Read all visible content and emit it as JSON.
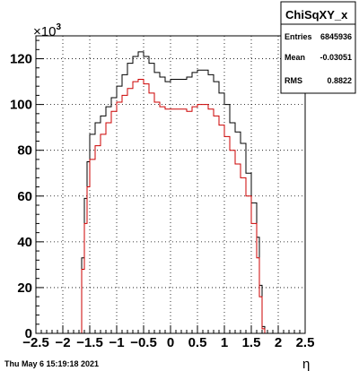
{
  "timestamp": "Thu May  6 15:19:18 2021",
  "stats": {
    "title": "ChiSqXY_x",
    "rows": [
      {
        "label": "Entries",
        "value": "6845936"
      },
      {
        "label": "Mean",
        "value": "-0.03051"
      },
      {
        "label": "RMS",
        "value": "0.8822"
      }
    ]
  },
  "chart_data": {
    "type": "line",
    "xlabel": "η",
    "ylabel": "",
    "y_multiplier_label": "×10",
    "y_multiplier_exponent": "3",
    "xlim": [
      -2.5,
      2.5
    ],
    "ylim": [
      0,
      130
    ],
    "x_ticks": [
      -2.5,
      -2,
      -1.5,
      -1,
      -0.5,
      0,
      0.5,
      1,
      1.5,
      2,
      2.5
    ],
    "x_tick_labels": [
      "−2.5",
      "−2",
      "−1.5",
      "−1",
      "−0.5",
      "0",
      "0.5",
      "1",
      "1.5",
      "2",
      "2.5"
    ],
    "y_ticks": [
      0,
      20,
      40,
      60,
      80,
      100,
      120
    ],
    "y_tick_labels": [
      "0",
      "20",
      "40",
      "60",
      "80",
      "100",
      "120"
    ],
    "grid": true,
    "series": [
      {
        "color": "#000000",
        "bins": [
          [
            -1.7,
            0
          ],
          [
            -1.65,
            33
          ],
          [
            -1.6,
            59
          ],
          [
            -1.55,
            75
          ],
          [
            -1.5,
            87
          ],
          [
            -1.4,
            92
          ],
          [
            -1.3,
            95
          ],
          [
            -1.2,
            99
          ],
          [
            -1.1,
            103
          ],
          [
            -1.0,
            108
          ],
          [
            -0.9,
            113
          ],
          [
            -0.8,
            118
          ],
          [
            -0.7,
            121
          ],
          [
            -0.6,
            123
          ],
          [
            -0.5,
            121
          ],
          [
            -0.4,
            118
          ],
          [
            -0.3,
            114
          ],
          [
            -0.2,
            112
          ],
          [
            -0.1,
            110
          ],
          [
            0.0,
            111
          ],
          [
            0.1,
            111
          ],
          [
            0.2,
            111
          ],
          [
            0.3,
            112
          ],
          [
            0.4,
            114
          ],
          [
            0.5,
            115
          ],
          [
            0.6,
            115
          ],
          [
            0.7,
            113
          ],
          [
            0.8,
            110
          ],
          [
            0.9,
            105
          ],
          [
            1.0,
            100
          ],
          [
            1.1,
            92
          ],
          [
            1.2,
            88
          ],
          [
            1.3,
            83
          ],
          [
            1.4,
            70
          ],
          [
            1.5,
            57
          ],
          [
            1.6,
            42
          ],
          [
            1.65,
            21
          ],
          [
            1.7,
            3
          ]
        ]
      },
      {
        "color": "#cc0000",
        "bins": [
          [
            -1.7,
            0
          ],
          [
            -1.65,
            28
          ],
          [
            -1.6,
            48
          ],
          [
            -1.55,
            64
          ],
          [
            -1.5,
            76
          ],
          [
            -1.4,
            82
          ],
          [
            -1.3,
            87
          ],
          [
            -1.2,
            92
          ],
          [
            -1.1,
            97
          ],
          [
            -1.0,
            101
          ],
          [
            -0.9,
            104
          ],
          [
            -0.8,
            107
          ],
          [
            -0.7,
            110
          ],
          [
            -0.6,
            111
          ],
          [
            -0.5,
            109
          ],
          [
            -0.4,
            105
          ],
          [
            -0.3,
            101
          ],
          [
            -0.2,
            99
          ],
          [
            -0.1,
            98
          ],
          [
            0.0,
            98
          ],
          [
            0.1,
            98
          ],
          [
            0.2,
            98
          ],
          [
            0.3,
            97
          ],
          [
            0.4,
            99
          ],
          [
            0.5,
            100
          ],
          [
            0.6,
            100
          ],
          [
            0.7,
            98
          ],
          [
            0.8,
            95
          ],
          [
            0.9,
            91
          ],
          [
            1.0,
            86
          ],
          [
            1.1,
            80
          ],
          [
            1.2,
            74
          ],
          [
            1.3,
            68
          ],
          [
            1.4,
            60
          ],
          [
            1.5,
            48
          ],
          [
            1.6,
            33
          ],
          [
            1.65,
            16
          ],
          [
            1.7,
            2
          ]
        ]
      }
    ]
  }
}
